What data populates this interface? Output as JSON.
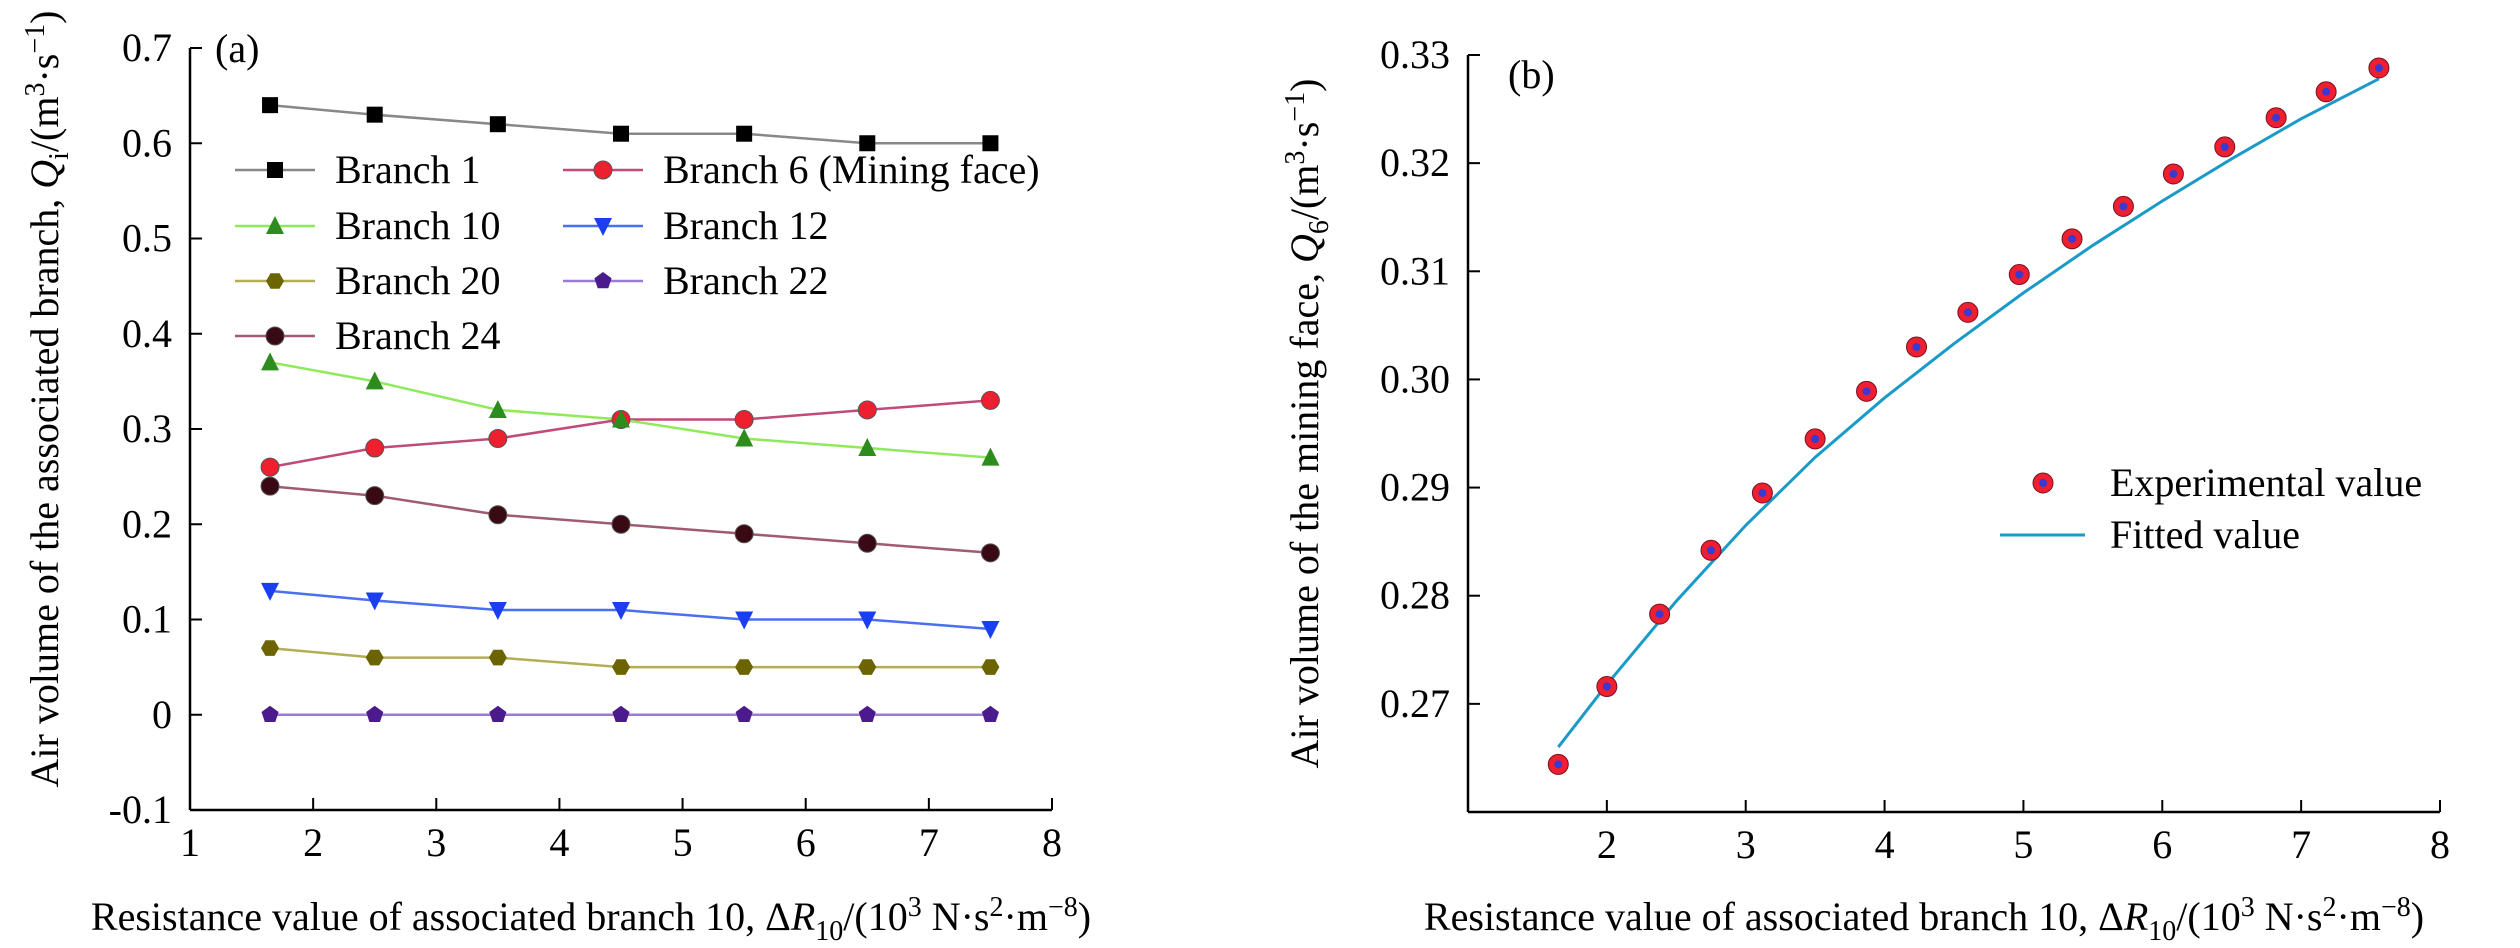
{
  "chart_data": [
    {
      "type": "line",
      "panel_label": "(a)",
      "xlabel": "Resistance value of associated branch 10, ΔR10/(10³ N·s²·m⁻⁸)",
      "xlabel_parts": {
        "pre": "Resistance value of associated branch 10, Δ",
        "var": "R",
        "sub": "10",
        "mid": "/(10",
        "sup1": "3",
        "mid2": " N·s",
        "sup2": "2",
        "mid3": "·m",
        "sup3": "−8",
        "post": ")"
      },
      "ylabel": "Air volume of the associated branch, Qi/(m³·s⁻¹)",
      "ylabel_parts": {
        "pre": "Air volume of the associated branch, ",
        "var": "Q",
        "sub": "i",
        "mid": "/(m",
        "sup1": "3",
        "mid2": "·s",
        "sup2": "−1",
        "post": ")"
      },
      "xlim": [
        1,
        8
      ],
      "ylim": [
        -0.1,
        0.7
      ],
      "xticks": [
        "1",
        "2",
        "3",
        "4",
        "5",
        "6",
        "7",
        "8"
      ],
      "yticks": [
        "-0.1",
        "0",
        "0.1",
        "0.2",
        "0.3",
        "0.4",
        "0.5",
        "0.6",
        "0.7"
      ],
      "legend_position": "upper-left",
      "x": [
        1.65,
        2.5,
        3.5,
        4.5,
        5.5,
        6.5,
        7.5
      ],
      "series": [
        {
          "name": "Branch 1",
          "marker": "square",
          "color": "#000000",
          "line_color": "#888888",
          "values": [
            0.64,
            0.63,
            0.62,
            0.61,
            0.61,
            0.6,
            0.6
          ]
        },
        {
          "name": "Branch 6 (Mining face)",
          "marker": "circle",
          "color": "#ee1f2f",
          "line_color": "#c04a78",
          "values": [
            0.26,
            0.28,
            0.29,
            0.31,
            0.31,
            0.32,
            0.33
          ]
        },
        {
          "name": "Branch 10",
          "marker": "triangle-up",
          "color": "#2e8b1e",
          "line_color": "#8fea5a",
          "values": [
            0.37,
            0.35,
            0.32,
            0.31,
            0.29,
            0.28,
            0.27
          ]
        },
        {
          "name": "Branch 12",
          "marker": "triangle-down",
          "color": "#1a3ff0",
          "line_color": "#4a6ff0",
          "values": [
            0.13,
            0.12,
            0.11,
            0.11,
            0.1,
            0.1,
            0.09
          ]
        },
        {
          "name": "Branch 20",
          "marker": "hexagon",
          "color": "#6b6400",
          "line_color": "#b3ae55",
          "values": [
            0.07,
            0.06,
            0.06,
            0.05,
            0.05,
            0.05,
            0.05
          ]
        },
        {
          "name": "Branch 22",
          "marker": "pentagon",
          "color": "#4b1a8c",
          "line_color": "#9b7bd6",
          "values": [
            0,
            0,
            0,
            0,
            0,
            0,
            0
          ]
        },
        {
          "name": "Branch 24",
          "marker": "circle",
          "color": "#3a0a14",
          "line_color": "#a05a72",
          "values": [
            0.24,
            0.23,
            0.21,
            0.2,
            0.19,
            0.18,
            0.17
          ]
        }
      ]
    },
    {
      "type": "scatter",
      "panel_label": "(b)",
      "xlabel": "Resistance value of associated branch 10, ΔR10/(10³ N·s²·m⁻⁸)",
      "xlabel_parts": {
        "pre": "Resistance value of associated branch 10, Δ",
        "var": "R",
        "sub": "10",
        "mid": "/(10",
        "sup1": "3",
        "mid2": " N·s",
        "sup2": "2",
        "mid3": "·m",
        "sup3": "−8",
        "post": ")"
      },
      "ylabel": "Air volume of the mining face, Q6/(m³·s⁻¹)",
      "ylabel_parts": {
        "pre": "Air volume of the mining face, ",
        "var": "Q",
        "sub": "6",
        "mid": "/(m",
        "sup1": "3",
        "mid2": "·s",
        "sup2": "−1",
        "post": ")"
      },
      "xlim": [
        1,
        8
      ],
      "ylim": [
        0.26,
        0.33
      ],
      "xticks": [
        "2",
        "3",
        "4",
        "5",
        "6",
        "7",
        "8"
      ],
      "yticks": [
        "0.27",
        "0.28",
        "0.29",
        "0.30",
        "0.31",
        "0.32",
        "0.33"
      ],
      "legend_position": "center-right",
      "series": [
        {
          "name": "Experimental value",
          "marker": "circle",
          "color": "#ee1f2f",
          "x": [
            1.65,
            2.0,
            2.38,
            2.75,
            3.12,
            3.5,
            3.87,
            4.23,
            4.6,
            4.97,
            5.35,
            5.72,
            6.08,
            6.45,
            6.82,
            7.18,
            7.56
          ],
          "values": [
            0.2644,
            0.2716,
            0.2783,
            0.2842,
            0.2895,
            0.2945,
            0.2989,
            0.303,
            0.3062,
            0.3097,
            0.313,
            0.316,
            0.319,
            0.3215,
            0.3242,
            0.3266,
            0.3288
          ]
        },
        {
          "name": "Fitted value",
          "line": true,
          "color": "#1a9ac8",
          "x": [
            1.65,
            2.0,
            2.5,
            3.0,
            3.5,
            4.0,
            4.5,
            5.0,
            5.5,
            6.0,
            6.5,
            7.0,
            7.56
          ],
          "values": [
            0.266,
            0.2718,
            0.2795,
            0.2865,
            0.2928,
            0.2983,
            0.3033,
            0.308,
            0.3124,
            0.3165,
            0.3204,
            0.3241,
            0.3278
          ]
        }
      ]
    }
  ]
}
